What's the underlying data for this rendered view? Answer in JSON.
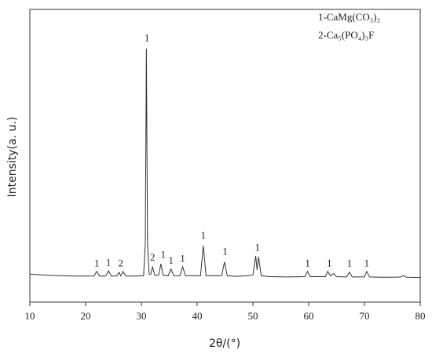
{
  "chart_data": {
    "type": "line",
    "xlabel": "2θ/(°)",
    "ylabel": "Intensity(a. u.)",
    "key": [
      "1-CaMg(CO₃)₂",
      "2-Ca₅(PO₄)₃F"
    ],
    "xlim": [
      10,
      80
    ],
    "xticks": [
      10,
      20,
      30,
      40,
      50,
      60,
      70,
      80
    ],
    "ylim": [
      0,
      100
    ],
    "color": "#333333",
    "x": [
      10,
      12,
      14,
      16,
      18,
      20,
      21.5,
      22,
      22.5,
      23.6,
      24.1,
      24.6,
      25.6,
      26,
      26.3,
      26.7,
      27.2,
      29,
      30.4,
      30.7,
      30.9,
      31.1,
      31.4,
      31.7,
      32,
      32.4,
      33.1,
      33.5,
      33.9,
      34.8,
      35.3,
      35.8,
      36.9,
      37.4,
      37.9,
      39,
      40.6,
      41.1,
      41.6,
      43,
      44.4,
      44.9,
      45.4,
      47,
      49,
      50,
      50.5,
      50.75,
      51,
      51.5,
      53,
      56,
      59.3,
      59.8,
      60.3,
      62,
      63,
      63.4,
      63.9,
      64.5,
      65,
      66.8,
      67.3,
      67.8,
      70,
      70.4,
      70.9,
      73,
      75,
      76.5,
      77,
      77.5,
      80
    ],
    "values": [
      9.6,
      9.3,
      9.1,
      9.0,
      8.9,
      8.9,
      8.9,
      10.5,
      8.9,
      8.9,
      10.7,
      8.9,
      8.9,
      10.2,
      9.0,
      10.5,
      8.9,
      8.9,
      9.0,
      20,
      86.6,
      20,
      9.5,
      9.6,
      12.1,
      9.2,
      9.2,
      13.1,
      9.2,
      9.0,
      11.3,
      9.0,
      9.0,
      12.1,
      9.0,
      9.0,
      9.0,
      19.3,
      9.0,
      9.0,
      9.0,
      13.7,
      9.0,
      8.8,
      9.0,
      9.3,
      15.8,
      11,
      15.5,
      9.0,
      8.7,
      8.6,
      8.7,
      10.5,
      8.7,
      8.7,
      8.7,
      10.5,
      9.0,
      9.7,
      8.7,
      8.6,
      10.2,
      8.6,
      8.6,
      10.5,
      8.6,
      8.5,
      8.5,
      8.6,
      9.1,
      8.5,
      8.4
    ],
    "annotations": [
      {
        "text": "1",
        "x": 31,
        "y": 90
      },
      {
        "text": "1",
        "x": 22,
        "y": 13
      },
      {
        "text": "1",
        "x": 24.1,
        "y": 13.3
      },
      {
        "text": "2",
        "x": 26.3,
        "y": 13
      },
      {
        "text": "2",
        "x": 32,
        "y": 15
      },
      {
        "text": "1",
        "x": 33.9,
        "y": 16
      },
      {
        "text": "1",
        "x": 35.3,
        "y": 14
      },
      {
        "text": "1",
        "x": 37.4,
        "y": 14.6
      },
      {
        "text": "1",
        "x": 41.1,
        "y": 22.5
      },
      {
        "text": "1",
        "x": 45,
        "y": 17
      },
      {
        "text": "1",
        "x": 50.8,
        "y": 18.3
      },
      {
        "text": "1",
        "x": 59.8,
        "y": 13
      },
      {
        "text": "1",
        "x": 63.7,
        "y": 13
      },
      {
        "text": "1",
        "x": 67.3,
        "y": 13
      },
      {
        "text": "1",
        "x": 70.4,
        "y": 13
      }
    ]
  }
}
